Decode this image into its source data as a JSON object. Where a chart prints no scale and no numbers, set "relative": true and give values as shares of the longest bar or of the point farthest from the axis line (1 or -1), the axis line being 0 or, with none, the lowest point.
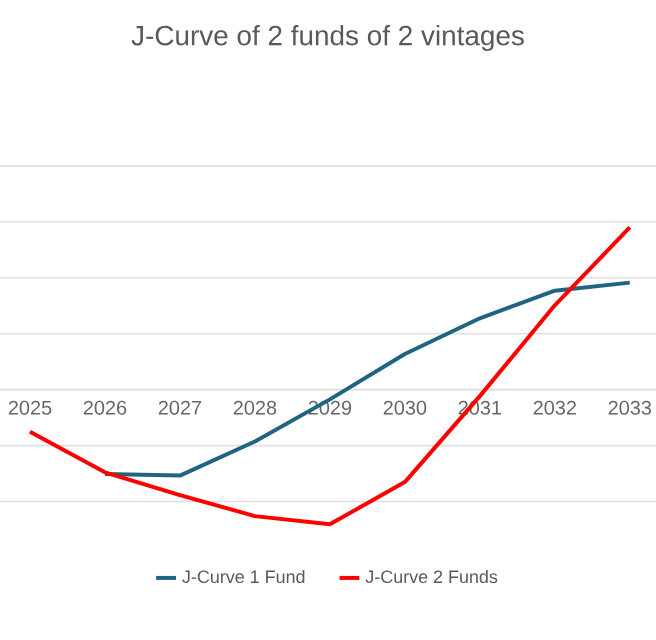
{
  "chart_data": {
    "type": "line",
    "title": "J-Curve of 2 funds of 2 vintages",
    "relative": true,
    "categories": [
      "2025",
      "2026",
      "2027",
      "2028",
      "2029",
      "2030",
      "2031",
      "2032",
      "2033"
    ],
    "series": [
      {
        "name": "J-Curve 1 Fund",
        "color": "#1f6483",
        "values": [
          null,
          -0.52,
          -0.53,
          -0.32,
          -0.06,
          0.22,
          0.44,
          0.61,
          0.66
        ]
      },
      {
        "name": "J-Curve 2 Funds",
        "color": "#ff0000",
        "values": [
          -0.26,
          -0.51,
          -0.65,
          -0.78,
          -0.83,
          -0.57,
          -0.04,
          0.52,
          1
        ]
      }
    ],
    "grid": "y",
    "legend": "bottom",
    "marker": "none",
    "line_style": "solid"
  }
}
